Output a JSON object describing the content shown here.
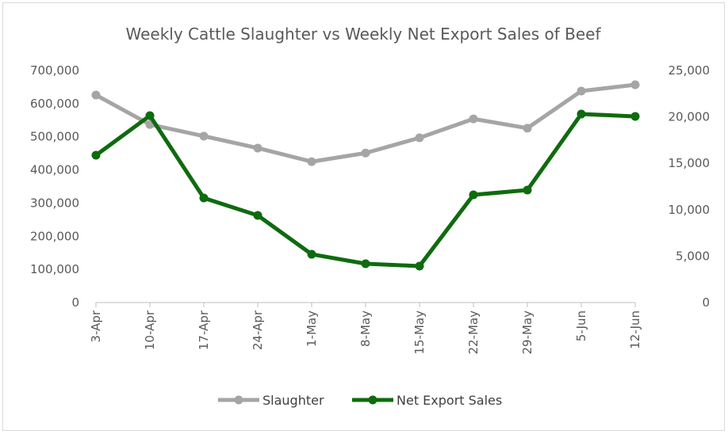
{
  "chart_data": {
    "type": "line",
    "title": "Weekly Cattle Slaughter vs Weekly Net Export Sales of Beef",
    "categories": [
      "3-Apr",
      "10-Apr",
      "17-Apr",
      "24-Apr",
      "1-May",
      "8-May",
      "15-May",
      "22-May",
      "29-May",
      "5-Jun",
      "12-Jun"
    ],
    "y_left": {
      "ylim": [
        0,
        700000
      ],
      "ticks": [
        "0",
        "100,000",
        "200,000",
        "300,000",
        "400,000",
        "500,000",
        "600,000",
        "700,000"
      ]
    },
    "y_right": {
      "ylim": [
        0,
        25000
      ],
      "ticks": [
        "0",
        "5,000",
        "10,000",
        "15,000",
        "20,000",
        "25,000"
      ]
    },
    "series": [
      {
        "name": "Slaughter",
        "axis": "left",
        "color": "#a5a5a5",
        "values": [
          626000,
          537000,
          502000,
          466000,
          425000,
          451000,
          497000,
          554000,
          526000,
          638000,
          657000
        ]
      },
      {
        "name": "Net Export Sales",
        "axis": "right",
        "color": "#0e6b0e",
        "values": [
          15870,
          20140,
          11260,
          9390,
          5200,
          4180,
          3930,
          11600,
          12120,
          20310,
          20050
        ]
      }
    ],
    "legend_position": "bottom",
    "grid": false
  }
}
